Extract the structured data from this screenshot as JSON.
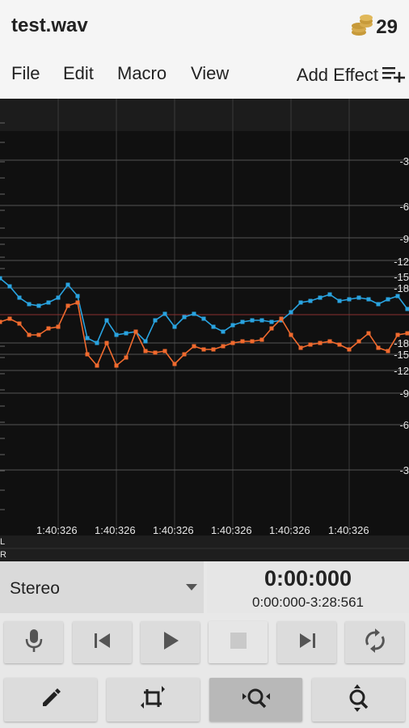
{
  "app": {
    "file_title": "test.wav",
    "coins": "29"
  },
  "menu": {
    "items": [
      "File",
      "Edit",
      "Macro",
      "View"
    ],
    "add_effect": "Add Effect"
  },
  "waveform": {
    "db_labels_top": [
      "-3",
      "-6",
      "-9",
      "-12",
      "-15",
      "-18"
    ],
    "db_labels_bottom": [
      "-18",
      "-15",
      "-12",
      "-9",
      "-6",
      "-3"
    ],
    "time_labels": [
      "1:40:326",
      "1:40:326",
      "1:40:326",
      "1:40:326",
      "1:40:326",
      "1:40:326"
    ],
    "channel_left": "L",
    "channel_right": "R",
    "colors": {
      "left_channel": "#29a3e0",
      "right_channel": "#f06a2e",
      "background": "#101010"
    }
  },
  "transport": {
    "channel_mode": "Stereo",
    "current_time": "0:00:000",
    "selection_range": "0:00:000-3:28:561"
  },
  "toolbar": {
    "record": "microphone-icon",
    "skip_back": "skip-back-icon",
    "play": "play-icon",
    "stop": "stop-icon",
    "skip_forward": "skip-forward-icon",
    "loop": "loop-icon",
    "edit": "pencil-icon",
    "crop": "crop-icon",
    "zoom_horizontal": "zoom-horizontal-icon",
    "zoom_vertical": "zoom-vertical-icon"
  }
}
